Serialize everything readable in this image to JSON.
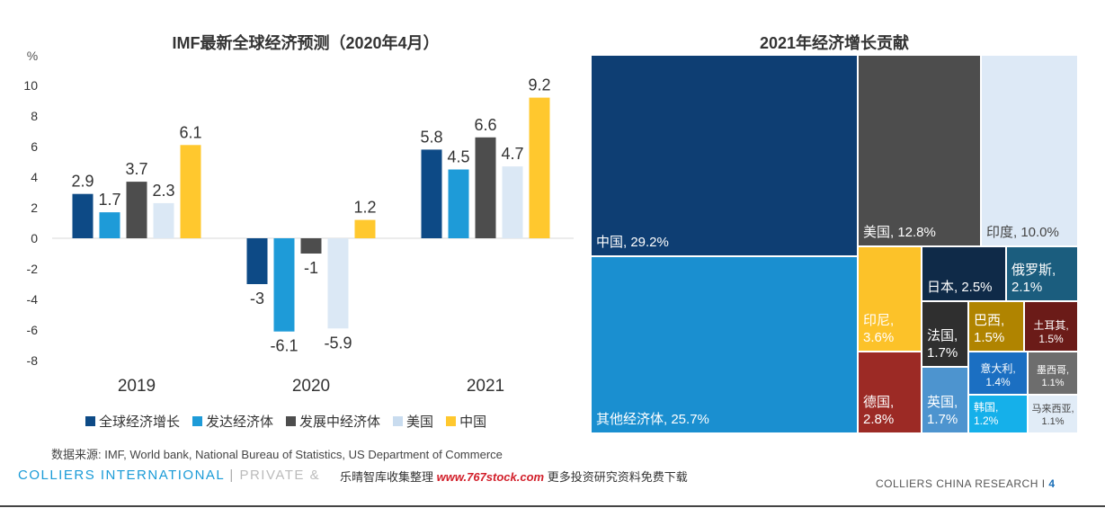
{
  "bar_panel": {
    "title": "IMF最新全球经济预测（2020年4月）",
    "unit": "%"
  },
  "treemap_panel": {
    "title": "2021年经济增长贡献"
  },
  "chart_data": [
    {
      "type": "bar",
      "title": "IMF最新全球经济预测（2020年4月）",
      "ylabel": "%",
      "xlabel": "",
      "ylim": [
        -8,
        10
      ],
      "yticks": [
        10,
        8,
        6,
        4,
        2,
        0,
        -2,
        -4,
        -6,
        -8
      ],
      "categories": [
        "2019",
        "2020",
        "2021"
      ],
      "legend_position": "bottom",
      "grid": false,
      "series": [
        {
          "name": "全球经济增长",
          "color": "#0d4a86",
          "values": [
            2.9,
            -3,
            5.8
          ],
          "labels": [
            "2.9",
            "-3",
            "5.8"
          ]
        },
        {
          "name": "发达经济体",
          "color": "#1e9bd8",
          "values": [
            1.7,
            -6.1,
            4.5
          ],
          "labels": [
            "1.7",
            "-6.1",
            "4.5"
          ]
        },
        {
          "name": "发展中经济体",
          "color": "#4d4d4d",
          "values": [
            3.7,
            -1,
            6.6
          ],
          "labels": [
            "3.7",
            "-1",
            "6.6"
          ]
        },
        {
          "name": "美国",
          "color": "#dbe8f5",
          "values": [
            2.3,
            -5.9,
            4.7
          ],
          "labels": [
            "2.3",
            "-5.9",
            "4.7"
          ]
        },
        {
          "name": "中国",
          "color": "#ffc82e",
          "values": [
            6.1,
            1.2,
            9.2
          ],
          "labels": [
            "6.1",
            "1.2",
            "9.2"
          ]
        }
      ]
    },
    {
      "type": "treemap",
      "title": "2021年经济增长贡献",
      "items": [
        {
          "name": "中国",
          "value": 29.2,
          "label": "中国, 29.2%",
          "color": "#0e3e73"
        },
        {
          "name": "其他经济体",
          "value": 25.7,
          "label": "其他经济体, 25.7%",
          "color": "#1a8fd0"
        },
        {
          "name": "美国",
          "value": 12.8,
          "label": "美国, 12.8%",
          "color": "#4d4d4d"
        },
        {
          "name": "印度",
          "value": 10.0,
          "label": "印度, 10.0%",
          "color": "#dde9f6"
        },
        {
          "name": "印尼",
          "value": 3.6,
          "label": "印尼,\n3.6%",
          "color": "#fcc229"
        },
        {
          "name": "德国",
          "value": 2.8,
          "label": "德国,\n2.8%",
          "color": "#9c2a25"
        },
        {
          "name": "日本",
          "value": 2.5,
          "label": "日本, 2.5%",
          "color": "#0f2a48"
        },
        {
          "name": "俄罗斯",
          "value": 2.1,
          "label": "俄罗斯,\n2.1%",
          "color": "#1b5d7e"
        },
        {
          "name": "法国",
          "value": 1.7,
          "label": "法国,\n1.7%",
          "color": "#2f2f2f"
        },
        {
          "name": "英国",
          "value": 1.7,
          "label": "英国,\n1.7%",
          "color": "#4d94cf"
        },
        {
          "name": "巴西",
          "value": 1.5,
          "label": "巴西,\n1.5%",
          "color": "#b08400"
        },
        {
          "name": "土耳其",
          "value": 1.5,
          "label": "土耳其,\n1.5%",
          "color": "#6b1b18"
        },
        {
          "name": "意大利",
          "value": 1.4,
          "label": "意大利,\n1.4%",
          "color": "#1b6fc2"
        },
        {
          "name": "墨西哥",
          "value": 1.1,
          "label": "墨西哥,\n1.1%",
          "color": "#6d6d6d"
        },
        {
          "name": "韩国",
          "value": 1.2,
          "label": "韩国,\n1.2%",
          "color": "#15b0ea"
        },
        {
          "name": "马来西亚",
          "value": 1.1,
          "label": "马来西亚,\n1.1%",
          "color": "#e1ecf7"
        }
      ]
    }
  ],
  "footer": {
    "source": "数据来源: IMF, World bank, National Bureau of Statistics, US Department of Commerce",
    "brand": "COLLIERS INTERNATIONAL",
    "separator": "|",
    "private_text": "PRIVATE &",
    "watermark_prefix": "乐晴智库收集整理",
    "watermark_url": "www.767stock.com",
    "watermark_suffix": "更多投资研究资料免费下载",
    "research_label": "COLLIERS CHINA RESEARCH",
    "research_sep": "I",
    "page_number": "4"
  }
}
